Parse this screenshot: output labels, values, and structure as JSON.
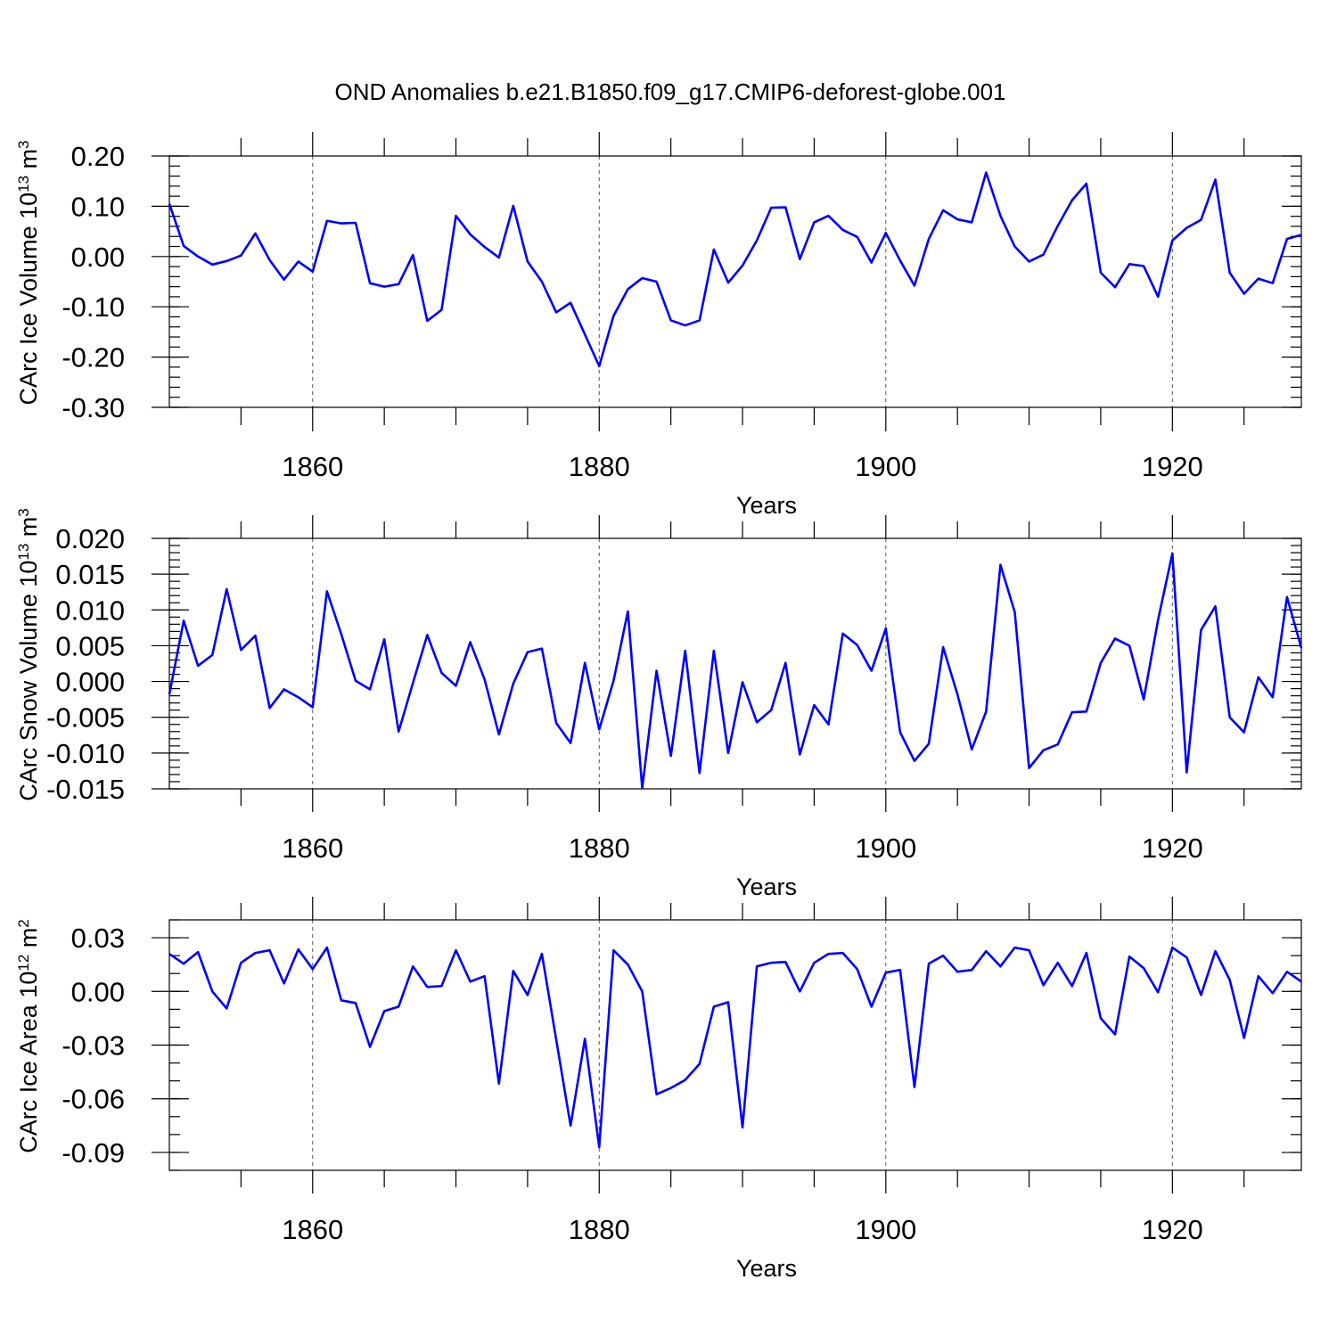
{
  "figure": {
    "title": "OND Anomalies b.e21.B1850.f09_g17.CMIP6-deforest-globe.001",
    "line_color": "#0000ff"
  },
  "chart_data": [
    {
      "type": "line",
      "id": "ice-volume",
      "title": "",
      "ylabel": "CArc Ice Volume 10",
      "ylabel_exp": "13",
      "ylabel_unit": " m",
      "ylabel_unit_exp": "3",
      "xlabel": "Years",
      "xlim": [
        1850,
        1929
      ],
      "ylim": [
        -0.3,
        0.2
      ],
      "x_ticks": [
        1860,
        1880,
        1900,
        1920
      ],
      "x_tick_labels": [
        "1860",
        "1880",
        "1900",
        "1920"
      ],
      "y_ticks": [
        -0.3,
        -0.2,
        -0.1,
        0.0,
        0.1,
        0.2
      ],
      "y_tick_labels": [
        "-0.30",
        "-0.20",
        "-0.10",
        "0.00",
        "0.10",
        "0.20"
      ],
      "y_minor_step": 0.02,
      "x_start": 1850,
      "series": [
        {
          "name": "CArc Ice Volume",
          "values": [
            0.105,
            0.021,
            0.0,
            -0.016,
            -0.009,
            0.002,
            0.046,
            -0.007,
            -0.046,
            -0.01,
            -0.03,
            0.071,
            0.066,
            0.067,
            -0.053,
            -0.06,
            -0.055,
            0.003,
            -0.128,
            -0.106,
            0.081,
            0.044,
            0.019,
            -0.002,
            0.101,
            -0.01,
            -0.05,
            -0.111,
            -0.092,
            -0.155,
            -0.218,
            -0.118,
            -0.065,
            -0.043,
            -0.05,
            -0.127,
            -0.137,
            -0.127,
            0.014,
            -0.052,
            -0.018,
            0.032,
            0.097,
            0.098,
            -0.005,
            0.068,
            0.081,
            0.053,
            0.039,
            -0.012,
            0.047,
            -0.008,
            -0.058,
            0.035,
            0.092,
            0.074,
            0.068,
            0.167,
            0.081,
            0.02,
            -0.01,
            0.004,
            0.061,
            0.112,
            0.145,
            -0.032,
            -0.061,
            -0.015,
            -0.019,
            -0.08,
            0.032,
            0.057,
            0.073,
            0.153,
            -0.032,
            -0.074,
            -0.044,
            -0.053,
            0.035,
            0.043
          ]
        }
      ]
    },
    {
      "type": "line",
      "id": "snow-volume",
      "title": "",
      "ylabel": "CArc Snow Volume 10",
      "ylabel_exp": "13",
      "ylabel_unit": " m",
      "ylabel_unit_exp": "3",
      "xlabel": "Years",
      "xlim": [
        1850,
        1929
      ],
      "ylim": [
        -0.015,
        0.02
      ],
      "x_ticks": [
        1860,
        1880,
        1900,
        1920
      ],
      "x_tick_labels": [
        "1860",
        "1880",
        "1900",
        "1920"
      ],
      "y_ticks": [
        -0.015,
        -0.01,
        -0.005,
        0.0,
        0.005,
        0.01,
        0.015,
        0.02
      ],
      "y_tick_labels": [
        "-0.015",
        "-0.010",
        "-0.005",
        "0.000",
        "0.005",
        "0.010",
        "0.015",
        "0.020"
      ],
      "y_minor_step": 0.001,
      "x_start": 1850,
      "series": [
        {
          "name": "CArc Snow Volume",
          "values": [
            -0.0018,
            0.0085,
            0.0022,
            0.0037,
            0.0129,
            0.0044,
            0.0064,
            -0.0037,
            -0.0011,
            -0.0022,
            -0.0036,
            0.0126,
            0.0066,
            0.0001,
            -0.0011,
            0.0059,
            -0.007,
            -0.0002,
            0.0065,
            0.0012,
            -0.0006,
            0.0055,
            0.0003,
            -0.0074,
            -0.0003,
            0.0041,
            0.0046,
            -0.0058,
            -0.0086,
            0.0026,
            -0.0067,
            0.0001,
            0.0098,
            -0.0149,
            0.0015,
            -0.0104,
            0.0043,
            -0.0128,
            0.0043,
            -0.01,
            -0.0001,
            -0.0057,
            -0.004,
            0.0026,
            -0.0102,
            -0.0033,
            -0.006,
            0.0067,
            0.0051,
            0.0015,
            0.0074,
            -0.0071,
            -0.0111,
            -0.0087,
            0.0048,
            -0.0018,
            -0.0095,
            -0.0042,
            0.0163,
            0.0097,
            -0.0121,
            -0.0096,
            -0.0088,
            -0.0043,
            -0.0042,
            0.0026,
            0.006,
            0.005,
            -0.0025,
            0.0086,
            0.0179,
            -0.0127,
            0.0072,
            0.0105,
            -0.005,
            -0.0071,
            0.0006,
            -0.0022,
            0.0118,
            0.0047
          ]
        }
      ]
    },
    {
      "type": "line",
      "id": "ice-area",
      "title": "",
      "ylabel": "CArc Ice Area 10",
      "ylabel_exp": "12",
      "ylabel_unit": " m",
      "ylabel_unit_exp": "2",
      "xlabel": "Years",
      "xlim": [
        1850,
        1929
      ],
      "ylim": [
        -0.1,
        0.04
      ],
      "x_ticks": [
        1860,
        1880,
        1900,
        1920
      ],
      "x_tick_labels": [
        "1860",
        "1880",
        "1900",
        "1920"
      ],
      "y_ticks": [
        -0.09,
        -0.06,
        -0.03,
        0.0,
        0.03
      ],
      "y_tick_labels": [
        "-0.09",
        "-0.06",
        "-0.03",
        "0.00",
        "0.03"
      ],
      "y_minor_step": 0.01,
      "x_start": 1850,
      "series": [
        {
          "name": "CArc Ice Area",
          "values": [
            0.021,
            0.0155,
            0.022,
            0.0,
            -0.0095,
            0.016,
            0.0215,
            0.023,
            0.0045,
            0.0235,
            0.0125,
            0.0245,
            -0.005,
            -0.0065,
            -0.031,
            -0.011,
            -0.0085,
            0.014,
            0.0025,
            0.003,
            0.023,
            0.0055,
            0.0085,
            -0.0515,
            0.0115,
            -0.002,
            0.021,
            -0.027,
            -0.075,
            -0.0265,
            -0.087,
            0.023,
            0.015,
            0.0,
            -0.0575,
            -0.054,
            -0.0495,
            -0.0405,
            -0.0085,
            -0.006,
            -0.076,
            0.014,
            0.016,
            0.0165,
            0.0,
            0.016,
            0.021,
            0.0215,
            0.0125,
            -0.0085,
            0.0105,
            0.012,
            -0.0535,
            0.0155,
            0.02,
            0.011,
            0.012,
            0.0225,
            0.014,
            0.0245,
            0.023,
            0.0035,
            0.016,
            0.003,
            0.0215,
            -0.015,
            -0.024,
            0.0195,
            0.013,
            -0.0005,
            0.0245,
            0.019,
            -0.002,
            0.0225,
            0.0065,
            -0.026,
            0.0085,
            -0.001,
            0.011,
            0.0055
          ]
        }
      ]
    }
  ]
}
